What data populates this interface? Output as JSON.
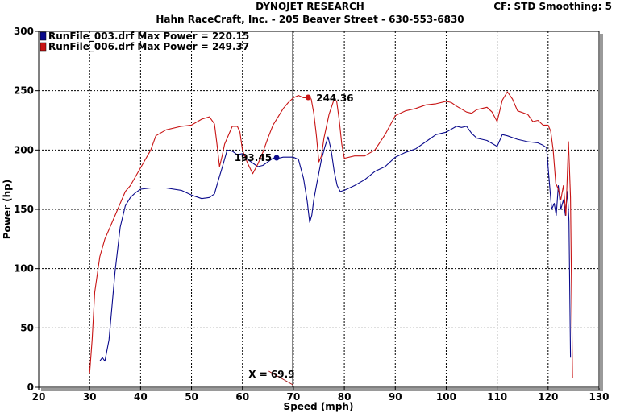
{
  "header": {
    "title": "DYNOJET RESEARCH",
    "subtitle": "Hahn RaceCraft, Inc. - 205 Beaver Street - 630-553-6830",
    "settings": "CF: STD  Smoothing: 5"
  },
  "chart_data": {
    "type": "line",
    "xlabel": "Speed (mph)",
    "ylabel": "Power (hp)",
    "xlim": [
      20,
      130
    ],
    "ylim": [
      0,
      300
    ],
    "xticks": [
      20,
      30,
      40,
      50,
      60,
      70,
      80,
      90,
      100,
      110,
      120,
      130
    ],
    "yticks": [
      0,
      50,
      100,
      150,
      200,
      250,
      300
    ],
    "grid": true,
    "legend_position": "top-left",
    "cursor": {
      "x": 69.9,
      "label": "X = 69.9"
    },
    "series": [
      {
        "name": "RunFile_003.drf Max Power = 220.15",
        "color": "#0a0a8c",
        "marker": {
          "x": 66.7,
          "y": 193.45,
          "label": "193.45"
        },
        "x": [
          32.0,
          32.5,
          33.0,
          33.8,
          35.0,
          36.0,
          37.0,
          38.0,
          39.0,
          40.0,
          42.0,
          45.0,
          48.0,
          50.0,
          52.0,
          53.5,
          54.5,
          55.3,
          56.0,
          57.0,
          58.0,
          59.0,
          60.0,
          61.0,
          62.0,
          63.0,
          64.0,
          65.0,
          66.0,
          67.0,
          68.0,
          69.0,
          70.0,
          71.0,
          72.0,
          72.7,
          73.2,
          73.6,
          74.0,
          74.6,
          75.5,
          76.2,
          76.8,
          77.4,
          78.0,
          78.6,
          79.2,
          80.0,
          82.0,
          84.0,
          86.0,
          88.0,
          90.0,
          92.0,
          94.0,
          96.0,
          98.0,
          100.0,
          102.0,
          103.0,
          104.0,
          105.0,
          106.0,
          108.0,
          110.0,
          111.0,
          112.0,
          114.0,
          116.0,
          118.0,
          119.0,
          119.7,
          120.2,
          120.7,
          121.2,
          121.6,
          122.0,
          122.5,
          123.0,
          123.4,
          123.8,
          124.1,
          124.4
        ],
        "y": [
          22,
          25,
          22,
          40,
          98,
          135,
          153,
          160,
          164,
          167,
          168,
          168,
          166,
          162,
          159,
          160,
          163,
          175,
          185,
          200,
          199,
          196,
          197,
          192,
          189,
          186,
          187,
          190,
          193,
          193,
          194,
          194,
          194,
          192,
          176,
          157,
          139,
          145,
          158,
          172,
          192,
          203,
          211,
          200,
          182,
          170,
          165,
          166,
          170,
          175,
          182,
          186,
          194,
          198,
          201,
          207,
          213,
          215,
          220,
          219,
          220,
          214,
          210,
          208,
          203,
          213,
          212,
          209,
          207,
          206,
          204,
          202,
          175,
          150,
          155,
          145,
          170,
          150,
          158,
          145,
          165,
          140,
          25
        ]
      },
      {
        "name": "RunFile_006.drf Max Power = 249.37",
        "color": "#c81414",
        "marker": {
          "x": 72.9,
          "y": 244.36,
          "label": "244.36"
        },
        "x": [
          30.0,
          30.5,
          31.0,
          32.0,
          33.0,
          34.0,
          35.0,
          36.0,
          37.0,
          38.0,
          40.0,
          42.0,
          43.0,
          45.0,
          48.0,
          50.0,
          52.0,
          53.5,
          54.5,
          55.0,
          55.5,
          56.0,
          56.5,
          57.0,
          58.0,
          59.0,
          59.5,
          60.0,
          61.0,
          62.0,
          63.0,
          64.0,
          65.0,
          66.0,
          67.0,
          68.0,
          69.0,
          70.0,
          71.0,
          72.0,
          72.9,
          73.5,
          74.0,
          74.5,
          75.0,
          75.5,
          76.0,
          77.0,
          78.0,
          78.5,
          79.0,
          79.5,
          80.0,
          82.0,
          84.0,
          86.0,
          88.0,
          90.0,
          92.0,
          94.0,
          96.0,
          98.0,
          100.0,
          101.0,
          102.0,
          104.0,
          105.0,
          106.0,
          108.0,
          109.0,
          110.0,
          111.0,
          112.0,
          113.0,
          114.0,
          116.0,
          117.0,
          118.0,
          119.0,
          120.0,
          120.5,
          121.0,
          121.5,
          122.0,
          122.5,
          123.0,
          123.5,
          124.0,
          124.4,
          124.8
        ],
        "y": [
          12,
          40,
          80,
          110,
          125,
          135,
          145,
          155,
          165,
          170,
          185,
          200,
          212,
          217,
          220,
          221,
          226,
          228,
          222,
          205,
          186,
          195,
          205,
          210,
          220,
          220,
          215,
          200,
          189,
          180,
          188,
          198,
          210,
          221,
          228,
          235,
          240,
          244,
          246,
          244,
          244,
          243,
          231,
          213,
          190,
          195,
          210,
          230,
          243,
          241,
          225,
          205,
          193,
          195,
          195,
          200,
          213,
          229,
          233,
          235,
          238,
          239,
          241,
          240,
          237,
          232,
          231,
          234,
          236,
          232,
          224,
          242,
          249,
          243,
          233,
          230,
          224,
          225,
          221,
          221,
          216,
          200,
          172,
          167,
          158,
          170,
          145,
          207,
          160,
          8
        ]
      }
    ]
  }
}
